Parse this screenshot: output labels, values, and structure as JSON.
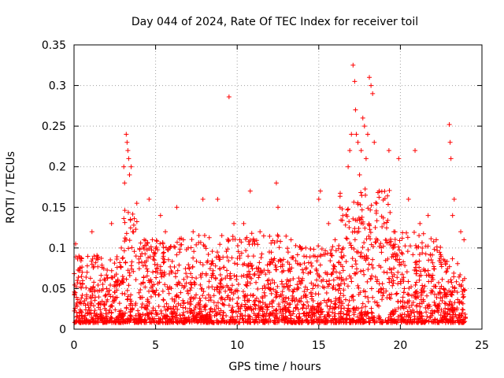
{
  "chart_data": {
    "type": "scatter",
    "title": "Day 044 of 2024, Rate Of TEC Index for receiver toil",
    "xlabel": "GPS time / hours",
    "ylabel": "ROTI / TECUs",
    "xlim": [
      0,
      25
    ],
    "ylim": [
      0,
      0.35
    ],
    "xticks": [
      0,
      5,
      10,
      15,
      20,
      25
    ],
    "xtick_labels": [
      "0",
      "5",
      "10",
      "15",
      "20",
      "25"
    ],
    "yticks": [
      0,
      0.05,
      0.1,
      0.15,
      0.2,
      0.25,
      0.3,
      0.35
    ],
    "ytick_labels": [
      "0",
      "0.05",
      "0.1",
      "0.15",
      "0.2",
      "0.25",
      "0.3",
      "0.35"
    ],
    "grid": true,
    "marker": "+",
    "point_color": "#ff0000",
    "series": [
      {
        "name": "ROTI",
        "x": [
          0.1,
          0.2,
          0.3,
          0.5,
          1.1,
          1.6,
          2.3,
          2.9,
          3.05,
          3.1,
          3.2,
          3.25,
          3.3,
          3.35,
          3.4,
          3.5,
          3.6,
          3.8,
          4.3,
          4.6,
          5.3,
          5.6,
          6.3,
          6.7,
          7.3,
          7.9,
          8.8,
          9.5,
          9.8,
          10.4,
          10.8,
          11.4,
          12.4,
          12.5,
          13.3,
          14.2,
          15.0,
          15.1,
          15.6,
          16.0,
          16.3,
          16.8,
          16.9,
          17.0,
          17.1,
          17.2,
          17.25,
          17.3,
          17.4,
          17.5,
          17.6,
          17.7,
          17.8,
          17.9,
          18.0,
          18.1,
          18.2,
          18.3,
          18.4,
          18.7,
          19.3,
          19.9,
          20.5,
          20.9,
          21.2,
          21.7,
          22.2,
          23.0,
          23.05,
          23.1,
          23.2,
          23.3,
          23.7,
          23.9,
          0.8,
          1.9,
          4.9,
          7.0,
          8.4,
          11.0,
          13.8,
          19.0,
          21.0,
          22.8,
          2.0,
          6.0,
          9.0,
          12.0,
          14.5,
          16.5,
          19.6,
          22.5
        ],
        "y": [
          0.105,
          0.06,
          0.09,
          0.07,
          0.12,
          0.06,
          0.13,
          0.1,
          0.2,
          0.18,
          0.24,
          0.23,
          0.22,
          0.21,
          0.19,
          0.2,
          0.12,
          0.09,
          0.11,
          0.16,
          0.14,
          0.12,
          0.15,
          0.11,
          0.12,
          0.16,
          0.16,
          0.286,
          0.13,
          0.13,
          0.17,
          0.12,
          0.18,
          0.15,
          0.11,
          0.1,
          0.16,
          0.17,
          0.13,
          0.11,
          0.15,
          0.2,
          0.22,
          0.24,
          0.325,
          0.305,
          0.27,
          0.24,
          0.23,
          0.19,
          0.22,
          0.26,
          0.25,
          0.21,
          0.24,
          0.31,
          0.3,
          0.29,
          0.23,
          0.17,
          0.22,
          0.21,
          0.16,
          0.22,
          0.13,
          0.14,
          0.11,
          0.252,
          0.23,
          0.21,
          0.14,
          0.16,
          0.12,
          0.11,
          0.07,
          0.06,
          0.09,
          0.1,
          0.08,
          0.09,
          0.08,
          0.13,
          0.1,
          0.07,
          0.05,
          0.07,
          0.06,
          0.08,
          0.07,
          0.1,
          0.12,
          0.08
        ],
        "bands": [
          {
            "from": 0,
            "to": 3,
            "base": 0.035,
            "spread": 0.05
          },
          {
            "from": 3,
            "to": 4,
            "base": 0.05,
            "spread": 0.1
          },
          {
            "from": 4,
            "to": 7,
            "base": 0.045,
            "spread": 0.06
          },
          {
            "from": 7,
            "to": 10,
            "base": 0.04,
            "spread": 0.07
          },
          {
            "from": 10,
            "to": 13,
            "base": 0.04,
            "spread": 0.07
          },
          {
            "from": 13,
            "to": 16.3,
            "base": 0.035,
            "spread": 0.06
          },
          {
            "from": 16.3,
            "to": 19.5,
            "base": 0.055,
            "spread": 0.11
          },
          {
            "from": 19.5,
            "to": 22.5,
            "base": 0.045,
            "spread": 0.07
          },
          {
            "from": 22.5,
            "to": 24,
            "base": 0.03,
            "spread": 0.05
          }
        ]
      }
    ]
  }
}
